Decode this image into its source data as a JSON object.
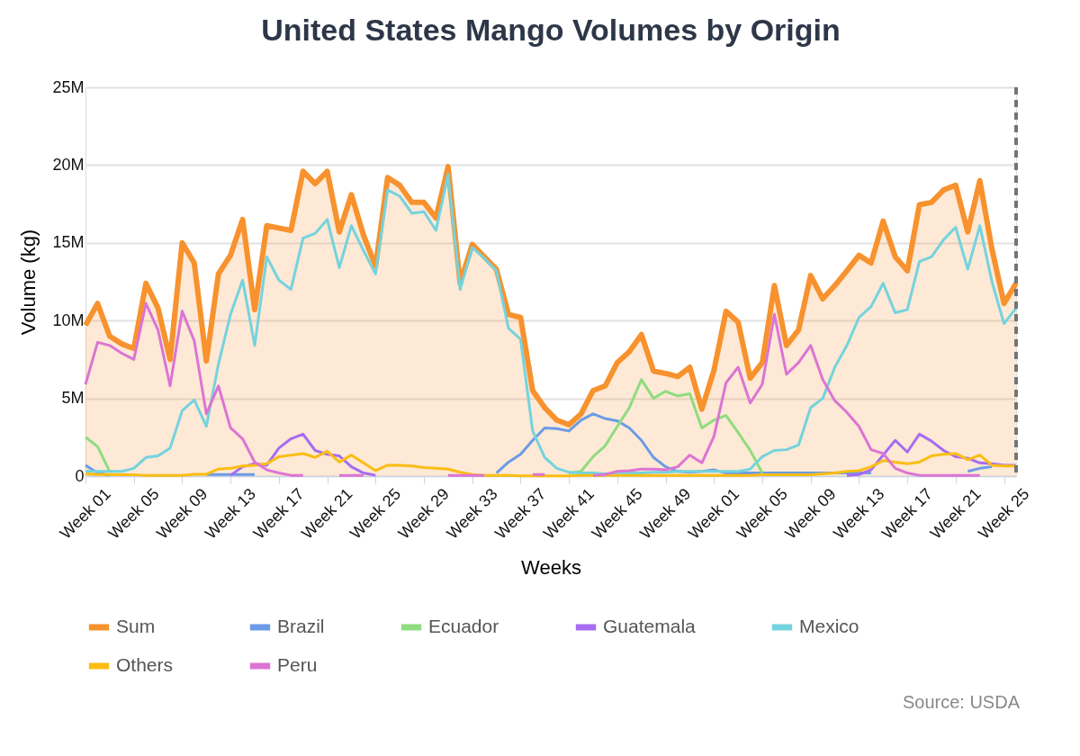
{
  "chart_data": {
    "type": "line",
    "title": "United States Mango Volumes by Origin",
    "xlabel": "Weeks",
    "ylabel": "Volume (kg)",
    "categories": [
      "Week 01",
      null,
      null,
      null,
      "Week 05",
      null,
      null,
      null,
      "Week 09",
      null,
      null,
      null,
      "Week 13",
      null,
      null,
      null,
      "Week 17",
      null,
      null,
      null,
      "Week 21",
      null,
      null,
      null,
      "Week 25",
      null,
      null,
      null,
      "Week 29",
      null,
      null,
      null,
      "Week 33",
      null,
      null,
      null,
      "Week 37",
      null,
      null,
      null,
      "Week 41",
      null,
      null,
      null,
      "Week 45",
      null,
      null,
      null,
      "Week 49",
      null,
      null,
      null,
      "Week 01",
      null,
      null,
      null,
      "Week 05",
      null,
      null,
      null,
      "Week 09",
      null,
      null,
      null,
      "Week 13",
      null,
      null,
      null,
      "Week 17",
      null,
      null,
      null,
      "Week 21",
      null,
      null,
      null,
      "Week 25",
      null
    ],
    "series": [
      {
        "name": "Sum",
        "type": "area",
        "color": "#f7922e",
        "values": [
          9.7,
          11.1,
          9.0,
          8.5,
          8.2,
          12.4,
          10.8,
          7.5,
          15.0,
          13.7,
          7.4,
          13.0,
          14.2,
          16.5,
          10.7,
          16.1,
          15.95,
          15.8,
          19.6,
          18.8,
          19.6,
          15.7,
          18.1,
          15.5,
          13.5,
          19.2,
          18.7,
          17.6,
          17.6,
          16.6,
          19.9,
          12.4,
          14.9,
          14.1,
          13.3,
          10.4,
          10.2,
          5.5,
          4.4,
          3.6,
          3.3,
          4.0,
          5.5,
          5.8,
          7.3,
          8.0,
          9.1,
          6.75,
          6.6,
          6.4,
          7.0,
          4.3,
          6.8,
          10.6,
          9.9,
          6.3,
          7.3,
          12.25,
          8.4,
          9.4,
          12.9,
          11.4,
          12.25,
          13.2,
          14.2,
          13.7,
          16.4,
          14.1,
          13.2,
          17.45,
          17.6,
          18.4,
          18.7,
          15.7,
          19.0,
          14.6,
          11.1,
          12.4
        ]
      },
      {
        "name": "Brazil",
        "color": "#6b9be6",
        "values": [
          0.7,
          0.2,
          0.05,
          null,
          null,
          null,
          null,
          null,
          null,
          null,
          0.1,
          0.1,
          0.1,
          0.1,
          0.1,
          null,
          null,
          null,
          null,
          null,
          null,
          null,
          null,
          null,
          null,
          null,
          null,
          null,
          null,
          null,
          null,
          null,
          null,
          null,
          0.2,
          0.9,
          1.4,
          2.3,
          3.1,
          3.05,
          2.9,
          3.6,
          4.0,
          3.7,
          3.55,
          3.1,
          2.3,
          1.2,
          0.6,
          0.3,
          0.25,
          0.3,
          0.4,
          0.2,
          0.2,
          0.2,
          0.2,
          0.2,
          0.2,
          0.2,
          0.2,
          0.2,
          0.2,
          0.2,
          0.2,
          0.2,
          null,
          null,
          null,
          null,
          null,
          null,
          null,
          0.3,
          0.5,
          0.6,
          null,
          null
        ]
      },
      {
        "name": "Ecuador",
        "color": "#8fdc7f",
        "values": [
          2.5,
          1.9,
          0.3,
          null,
          null,
          null,
          null,
          null,
          null,
          null,
          null,
          null,
          null,
          null,
          null,
          null,
          null,
          null,
          null,
          null,
          null,
          null,
          null,
          null,
          null,
          null,
          null,
          null,
          null,
          null,
          null,
          null,
          null,
          null,
          null,
          null,
          null,
          null,
          null,
          null,
          0.2,
          0.3,
          1.25,
          1.95,
          3.2,
          4.4,
          6.2,
          5.0,
          5.45,
          5.15,
          5.3,
          3.1,
          3.6,
          3.9,
          2.8,
          1.65,
          0.2,
          null,
          null,
          null,
          null,
          null,
          null,
          null,
          null,
          null,
          null,
          null,
          null,
          null,
          null,
          null,
          null,
          null,
          null,
          null,
          null,
          null
        ]
      },
      {
        "name": "Guatemala",
        "color": "#a66cf2",
        "values": [
          null,
          null,
          null,
          null,
          null,
          null,
          null,
          null,
          null,
          null,
          null,
          null,
          0.05,
          0.6,
          0.8,
          0.7,
          1.8,
          2.4,
          2.7,
          1.65,
          1.4,
          1.3,
          0.6,
          0.2,
          0.05,
          null,
          null,
          null,
          null,
          null,
          null,
          null,
          null,
          null,
          null,
          null,
          null,
          null,
          null,
          null,
          null,
          null,
          null,
          null,
          null,
          null,
          null,
          null,
          null,
          null,
          null,
          null,
          null,
          null,
          null,
          null,
          null,
          null,
          null,
          null,
          null,
          null,
          null,
          0.05,
          0.1,
          0.4,
          1.35,
          2.3,
          1.55,
          2.7,
          2.25,
          1.65,
          1.25,
          1.15,
          0.85,
          0.8,
          0.7,
          0.7
        ]
      },
      {
        "name": "Mexico",
        "color": "#74d3de",
        "values": [
          0.3,
          0.3,
          0.3,
          0.3,
          0.5,
          1.2,
          1.3,
          1.8,
          4.2,
          4.9,
          3.2,
          7.2,
          10.4,
          12.6,
          8.4,
          14.1,
          12.6,
          12.0,
          15.3,
          15.6,
          16.5,
          13.4,
          16.1,
          14.5,
          13.0,
          18.4,
          18.0,
          16.9,
          17.0,
          15.8,
          19.4,
          12.0,
          14.7,
          14.0,
          13.2,
          9.5,
          8.8,
          2.9,
          1.2,
          0.5,
          0.25,
          0.2,
          0.2,
          0.15,
          0.15,
          0.2,
          0.2,
          0.25,
          0.25,
          0.3,
          0.3,
          0.3,
          0.3,
          0.3,
          0.3,
          0.45,
          1.25,
          1.65,
          1.7,
          2.0,
          4.4,
          5.0,
          7.0,
          8.4,
          10.2,
          10.9,
          12.4,
          10.5,
          10.7,
          13.8,
          14.1,
          15.2,
          16.0,
          13.3,
          16.1,
          12.5,
          9.8,
          10.8
        ]
      },
      {
        "name": "Others",
        "color": "#fbbd12",
        "values": [
          0.15,
          0.1,
          0.1,
          0.08,
          0.08,
          0.05,
          0.05,
          0.05,
          0.05,
          0.12,
          0.12,
          0.45,
          0.5,
          0.65,
          0.7,
          0.8,
          1.25,
          1.35,
          1.45,
          1.2,
          1.6,
          0.9,
          1.35,
          0.85,
          0.35,
          0.7,
          0.7,
          0.65,
          0.55,
          0.5,
          0.45,
          0.25,
          0.1,
          0.05,
          0.05,
          0.05,
          0.02,
          0.02,
          0.02,
          0.02,
          0.02,
          0.05,
          0.05,
          0.05,
          0.05,
          0.05,
          0.05,
          0.05,
          0.05,
          0.05,
          0.05,
          0.05,
          0.05,
          0.05,
          0.05,
          0.05,
          0.08,
          0.08,
          0.08,
          0.08,
          0.08,
          0.15,
          0.2,
          0.3,
          0.35,
          0.6,
          1.0,
          0.9,
          0.8,
          0.9,
          1.3,
          1.4,
          1.45,
          1.05,
          1.35,
          0.7,
          0.65,
          0.65
        ]
      },
      {
        "name": "Peru",
        "color": "#dc74d4",
        "values": [
          5.9,
          8.6,
          8.4,
          7.9,
          7.5,
          11.1,
          9.4,
          5.8,
          10.6,
          8.7,
          4.0,
          5.8,
          3.1,
          2.4,
          0.9,
          0.4,
          0.2,
          0.05,
          0.05,
          null,
          null,
          0.05,
          0.05,
          0.05,
          null,
          null,
          null,
          null,
          null,
          null,
          0.05,
          0.05,
          0.05,
          0.05,
          null,
          null,
          null,
          0.1,
          0.1,
          null,
          null,
          null,
          0.05,
          0.1,
          0.3,
          0.35,
          0.45,
          0.45,
          0.4,
          0.6,
          1.35,
          0.85,
          2.55,
          6.0,
          7.0,
          4.7,
          5.9,
          10.4,
          6.55,
          7.3,
          8.4,
          6.2,
          4.85,
          4.1,
          3.2,
          1.7,
          1.45,
          0.5,
          0.2,
          0.05,
          0.05,
          0.05,
          0.05,
          0.05,
          0.05,
          null,
          null,
          null
        ]
      }
    ],
    "ylim": [
      0,
      25
    ],
    "yticks": [
      0,
      {
        "value": 5,
        "label": "5M"
      },
      {
        "value": 10,
        "label": "10M"
      },
      {
        "value": 15,
        "label": "15M"
      },
      {
        "value": 20,
        "label": "20M"
      },
      {
        "value": 25,
        "label": "25M"
      }
    ],
    "grid": "y",
    "legend": "bottom",
    "marker": "none",
    "line_style": "solid",
    "ref_lines": [
      {
        "axis": "x",
        "line_style": "dashed",
        "color": "#757575"
      }
    ],
    "annotations": [
      "Source: USDA"
    ]
  }
}
